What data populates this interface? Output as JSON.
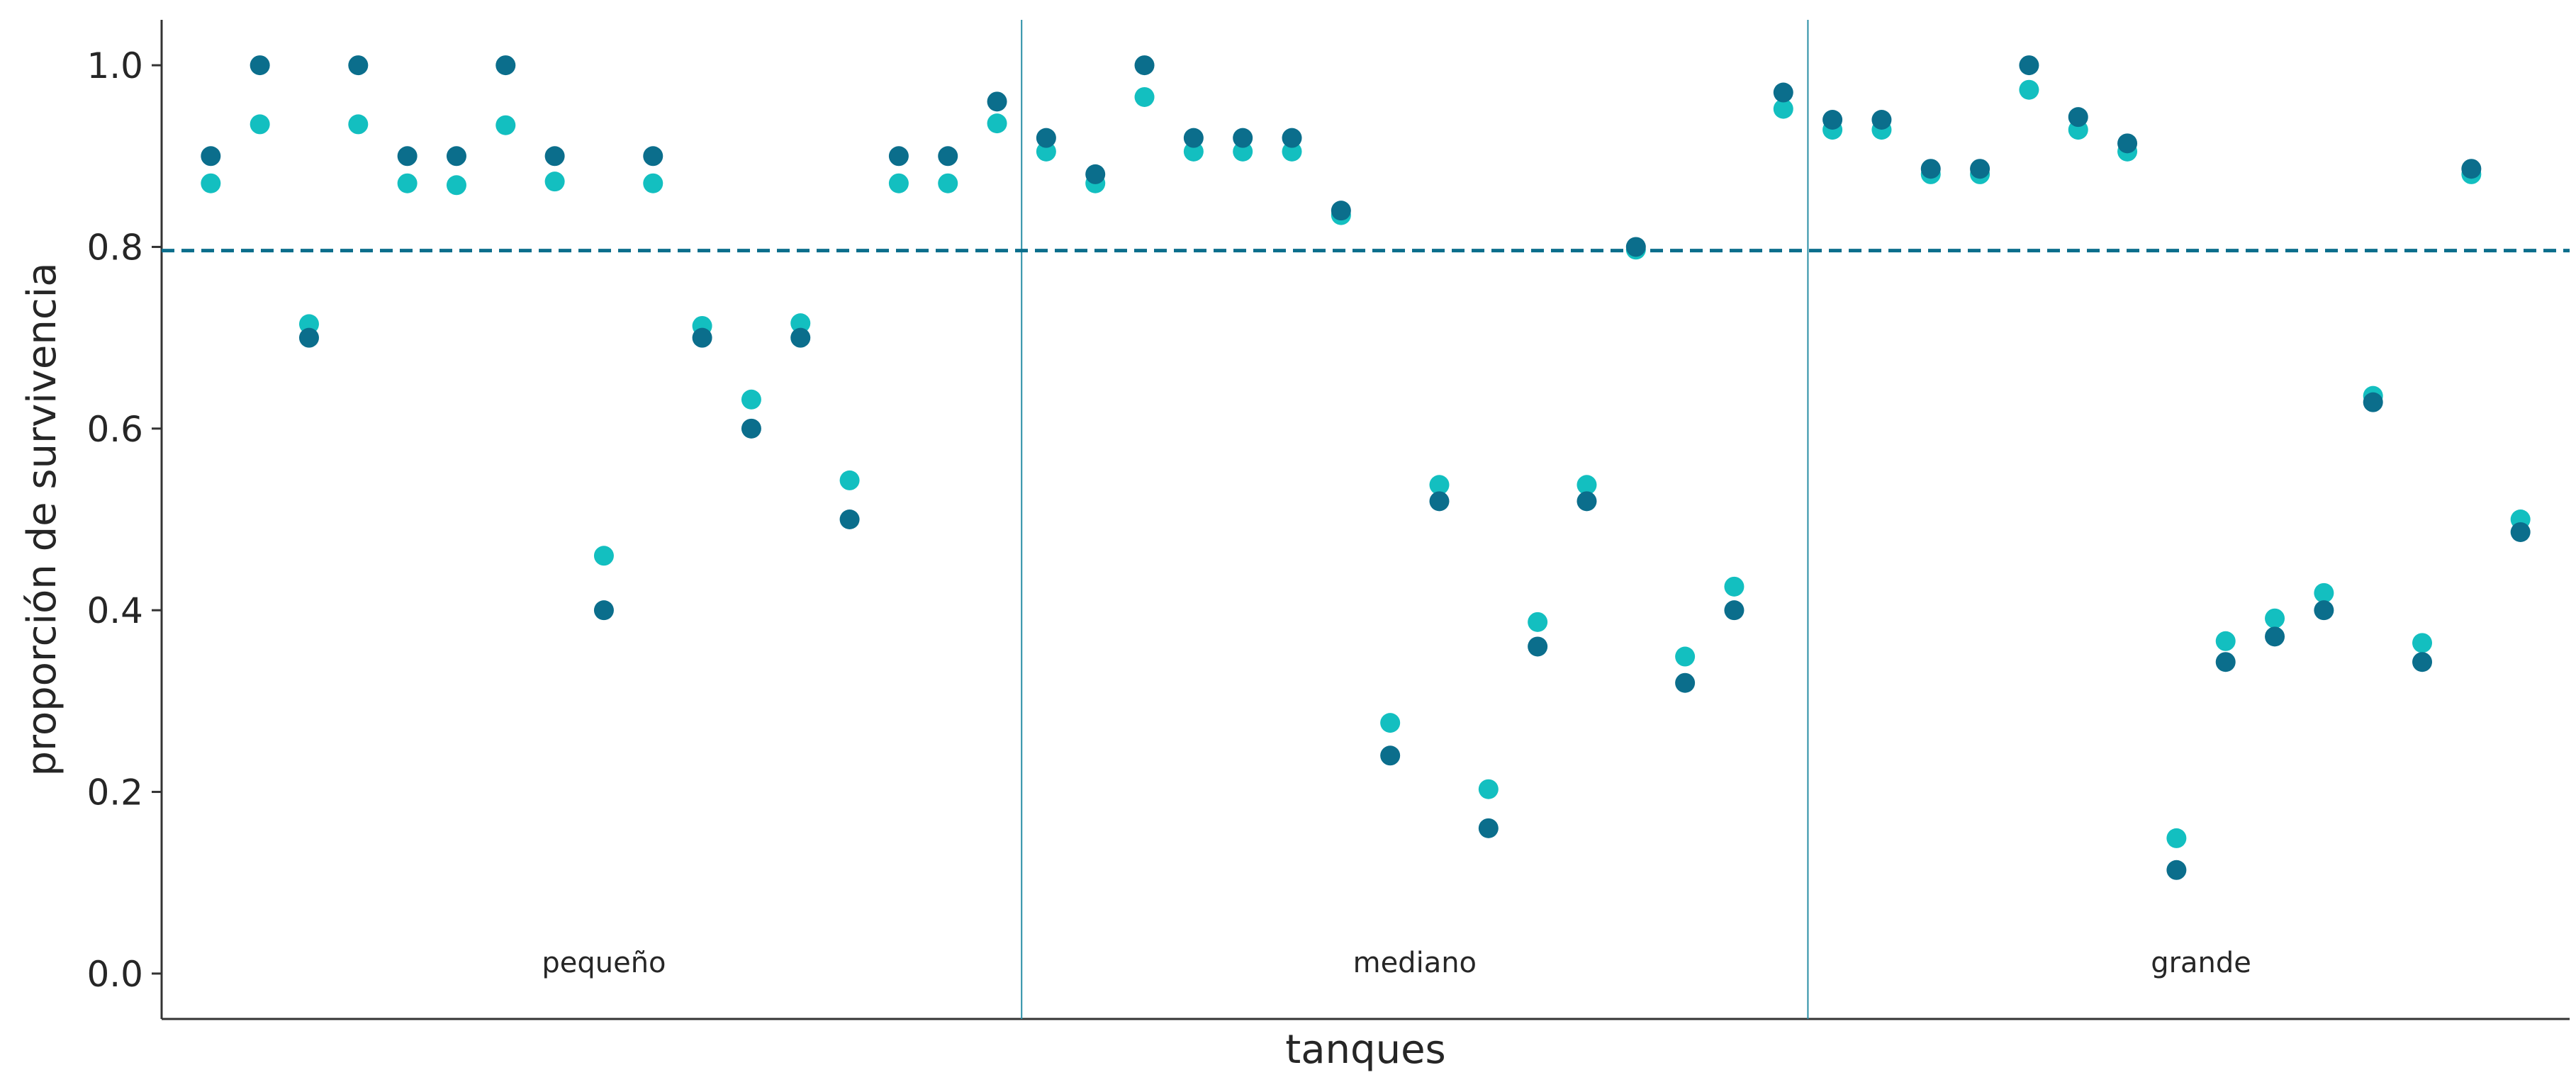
{
  "chart_data": {
    "type": "scatter",
    "xlabel": "tanques",
    "ylabel": "proporción de survivencia",
    "ylim": [
      -0.05,
      1.05
    ],
    "yticks": [
      0.0,
      0.2,
      0.4,
      0.6,
      0.8,
      1.0
    ],
    "ytick_labels": [
      "0.0",
      "0.2",
      "0.4",
      "0.6",
      "0.8",
      "1.0"
    ],
    "grid": false,
    "reference_line": {
      "y": 0.796,
      "style": "dashed"
    },
    "group_separators_after_tank": [
      17,
      33
    ],
    "groups": [
      {
        "label": "pequeño",
        "center_tank": 9
      },
      {
        "label": "mediano",
        "center_tank": 25.5
      },
      {
        "label": "grande",
        "center_tank": 41.5
      }
    ],
    "x": [
      1,
      2,
      3,
      4,
      5,
      6,
      7,
      8,
      9,
      10,
      11,
      12,
      13,
      14,
      15,
      16,
      17,
      18,
      19,
      20,
      21,
      22,
      23,
      24,
      25,
      26,
      27,
      28,
      29,
      30,
      31,
      32,
      33,
      34,
      35,
      36,
      37,
      38,
      39,
      40,
      41,
      42,
      43,
      44,
      45,
      46,
      47,
      48
    ],
    "series": [
      {
        "color": "#0b6e8c",
        "values": [
          0.9,
          1.0,
          0.7,
          1.0,
          0.9,
          0.9,
          1.0,
          0.9,
          0.4,
          0.9,
          0.7,
          0.6,
          0.7,
          0.5,
          0.9,
          0.9,
          0.96,
          0.92,
          0.88,
          1.0,
          0.92,
          0.92,
          0.92,
          0.84,
          0.24,
          0.52,
          0.16,
          0.36,
          0.52,
          0.8,
          0.32,
          0.4,
          0.97,
          0.94,
          0.94,
          0.886,
          0.886,
          1.0,
          0.943,
          0.914,
          0.114,
          0.343,
          0.371,
          0.4,
          0.629,
          0.343,
          0.886,
          0.486
        ]
      },
      {
        "color": "#13bfc0",
        "values": [
          0.87,
          0.935,
          0.715,
          0.935,
          0.87,
          0.868,
          0.934,
          0.872,
          0.46,
          0.87,
          0.713,
          0.632,
          0.716,
          0.543,
          0.87,
          0.87,
          0.936,
          0.905,
          0.87,
          0.965,
          0.905,
          0.905,
          0.905,
          0.835,
          0.276,
          0.538,
          0.203,
          0.387,
          0.538,
          0.797,
          0.349,
          0.426,
          0.952,
          0.929,
          0.929,
          0.88,
          0.88,
          0.973,
          0.929,
          0.905,
          0.149,
          0.366,
          0.391,
          0.419,
          0.636,
          0.364,
          0.88,
          0.5
        ]
      }
    ]
  }
}
